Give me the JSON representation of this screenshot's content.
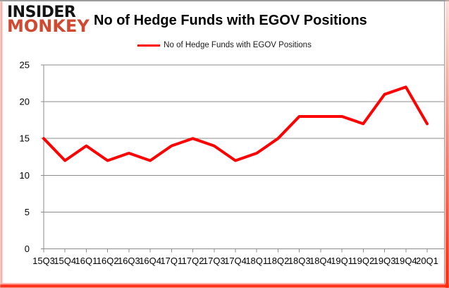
{
  "branding": {
    "logo_line1": "INSIDER",
    "logo_line2": "MONKEY",
    "logo_color1": "#141414",
    "logo_color2": "#d04a31"
  },
  "header": {
    "title": "No of Hedge Funds with EGOV Positions"
  },
  "legend": {
    "label": "No of Hedge Funds with EGOV Positions",
    "swatch_color": "#ff0000"
  },
  "chart_data": {
    "type": "line",
    "title": "No of Hedge Funds with EGOV Positions",
    "categories": [
      "15Q3",
      "15Q4",
      "16Q1",
      "16Q2",
      "16Q3",
      "16Q4",
      "17Q1",
      "17Q2",
      "17Q3",
      "17Q4",
      "18Q1",
      "18Q2",
      "18Q3",
      "18Q4",
      "19Q1",
      "19Q2",
      "19Q3",
      "19Q4",
      "20Q1"
    ],
    "series": [
      {
        "name": "No of Hedge Funds with EGOV Positions",
        "color": "#ff0000",
        "values": [
          15,
          12,
          14,
          12,
          13,
          12,
          14,
          15,
          14,
          12,
          13,
          15,
          18,
          18,
          18,
          17,
          21,
          22,
          17
        ]
      }
    ],
    "xlabel": "",
    "ylabel": "",
    "ylim": [
      0,
      25
    ],
    "yticks": [
      0,
      5,
      10,
      15,
      20,
      25
    ],
    "grid": "horizontal",
    "gridline_color": "#8c8c8c",
    "legend_position": "top"
  }
}
